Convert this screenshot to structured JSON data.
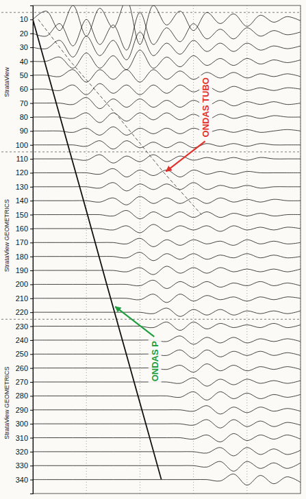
{
  "chart_data": {
    "type": "seismogram",
    "xlim": [
      0,
      100
    ],
    "xticks": [
      0,
      20,
      40,
      60,
      80,
      100
    ],
    "ylim": [
      0,
      350
    ],
    "yticks": [
      10,
      20,
      30,
      40,
      50,
      60,
      70,
      80,
      90,
      100,
      110,
      120,
      130,
      140,
      150,
      160,
      170,
      180,
      190,
      200,
      210,
      220,
      230,
      240,
      250,
      260,
      270,
      280,
      290,
      300,
      310,
      320,
      330,
      340
    ],
    "grid": true,
    "tick_labels": "y",
    "x": [
      0,
      5,
      10,
      15,
      20,
      25,
      30,
      35,
      40,
      45,
      50,
      55,
      60,
      65,
      70,
      75,
      80,
      85,
      90,
      95,
      100
    ],
    "traces": [
      {
        "depth": 10,
        "values": [
          0,
          6,
          -8,
          10,
          -12,
          8,
          -6,
          14,
          -18,
          10,
          -4,
          6,
          -8,
          5,
          -3,
          4,
          -5,
          3,
          -2,
          2,
          -1
        ]
      },
      {
        "depth": 20,
        "values": [
          0,
          -2,
          7,
          -9,
          10,
          -8,
          6,
          -12,
          15,
          -8,
          4,
          -6,
          7,
          -4,
          3,
          -4,
          4,
          -2,
          2,
          -1,
          1
        ]
      },
      {
        "depth": 30,
        "values": [
          0,
          -1,
          5,
          -7,
          8,
          -6,
          5,
          -9,
          11,
          -6,
          3,
          -5,
          5,
          -3,
          3,
          -3,
          3,
          -2,
          1,
          -1,
          1
        ]
      },
      {
        "depth": 40,
        "values": [
          0,
          0,
          3,
          -5,
          6,
          -5,
          4,
          -6,
          8,
          -5,
          3,
          -4,
          4,
          -3,
          2,
          -3,
          2,
          -2,
          1,
          -1,
          1
        ]
      },
      {
        "depth": 50,
        "values": [
          0,
          0,
          -1,
          4,
          -5,
          4,
          -3,
          4,
          -5,
          4,
          -3,
          3,
          -3,
          2,
          -2,
          2,
          -2,
          1,
          -1,
          1,
          -1
        ]
      },
      {
        "depth": 60,
        "values": [
          0,
          0,
          -1,
          3,
          -4,
          4,
          -3,
          3,
          -4,
          3,
          -3,
          3,
          -2,
          2,
          -2,
          2,
          -1,
          1,
          -1,
          1,
          0
        ]
      },
      {
        "depth": 70,
        "values": [
          0,
          0,
          0,
          -1,
          4,
          -4,
          3,
          -3,
          3,
          -3,
          2,
          -3,
          2,
          -2,
          2,
          -2,
          1,
          -1,
          1,
          -1,
          0
        ]
      },
      {
        "depth": 80,
        "values": [
          0,
          0,
          0,
          -1,
          3,
          -4,
          3,
          -3,
          3,
          -2,
          3,
          -2,
          2,
          -2,
          2,
          -1,
          1,
          -1,
          1,
          0,
          0
        ]
      },
      {
        "depth": 90,
        "values": [
          0,
          0,
          0,
          -1,
          2,
          -3,
          3,
          -3,
          2,
          -2,
          2,
          -2,
          2,
          -1,
          1,
          -1,
          1,
          -1,
          0,
          1,
          0
        ]
      },
      {
        "depth": 100,
        "values": [
          0,
          0,
          0,
          0,
          -1,
          3,
          -3,
          3,
          -2,
          2,
          -2,
          2,
          -2,
          1,
          -1,
          1,
          -1,
          1,
          0,
          0,
          0
        ]
      },
      {
        "depth": 110,
        "values": [
          0,
          0,
          0,
          0,
          -1,
          3,
          -3,
          2,
          -2,
          3,
          -2,
          2,
          -1,
          1,
          -1,
          1,
          -1,
          1,
          0,
          0,
          0
        ]
      },
      {
        "depth": 120,
        "values": [
          0,
          0,
          0,
          0,
          0,
          -1,
          3,
          -3,
          2,
          -2,
          2,
          -3,
          2,
          -1,
          1,
          -1,
          1,
          0,
          0,
          0,
          0
        ]
      },
      {
        "depth": 130,
        "values": [
          0,
          0,
          0,
          0,
          0,
          -1,
          3,
          -3,
          2,
          -2,
          2,
          -2,
          3,
          -2,
          1,
          -1,
          1,
          -1,
          0,
          0,
          0
        ]
      },
      {
        "depth": 140,
        "values": [
          0,
          0,
          0,
          0,
          0,
          -1,
          2,
          -3,
          3,
          -2,
          2,
          -2,
          2,
          -2,
          2,
          -1,
          1,
          -1,
          1,
          0,
          0
        ]
      },
      {
        "depth": 150,
        "values": [
          0,
          0,
          0,
          0,
          0,
          0,
          -1,
          3,
          -3,
          2,
          -2,
          2,
          -2,
          2,
          -2,
          1,
          -1,
          1,
          -1,
          0,
          0
        ]
      },
      {
        "depth": 160,
        "values": [
          0,
          0,
          0,
          0,
          0,
          0,
          -1,
          2,
          -3,
          3,
          -2,
          2,
          -1,
          2,
          -2,
          2,
          -1,
          1,
          -1,
          1,
          0
        ]
      },
      {
        "depth": 170,
        "values": [
          0,
          0,
          0,
          0,
          0,
          0,
          0,
          -1,
          3,
          -3,
          2,
          -2,
          2,
          -1,
          1,
          -2,
          2,
          -1,
          1,
          -1,
          0
        ]
      },
      {
        "depth": 180,
        "values": [
          0,
          0,
          0,
          0,
          0,
          0,
          0,
          -1,
          3,
          -3,
          2,
          -2,
          2,
          -2,
          1,
          -1,
          2,
          -1,
          1,
          -1,
          0
        ]
      },
      {
        "depth": 190,
        "values": [
          0,
          0,
          0,
          0,
          0,
          0,
          0,
          -1,
          2,
          -3,
          3,
          -2,
          2,
          -2,
          2,
          -1,
          1,
          -1,
          1,
          -1,
          1
        ]
      },
      {
        "depth": 200,
        "values": [
          0,
          0,
          0,
          0,
          0,
          0,
          0,
          0,
          -1,
          3,
          -3,
          2,
          -2,
          2,
          -2,
          1,
          -1,
          2,
          -1,
          1,
          -1
        ]
      },
      {
        "depth": 210,
        "values": [
          0,
          0,
          0,
          0,
          0,
          0,
          0,
          0,
          -1,
          3,
          -3,
          3,
          -2,
          2,
          -1,
          1,
          -2,
          1,
          -1,
          1,
          0
        ]
      },
      {
        "depth": 220,
        "values": [
          0,
          0,
          0,
          0,
          0,
          0,
          0,
          0,
          0,
          -1,
          3,
          -3,
          2,
          -2,
          2,
          -2,
          1,
          -1,
          1,
          -1,
          1
        ]
      },
      {
        "depth": 230,
        "values": [
          0,
          0,
          0,
          0,
          0,
          0,
          0,
          0,
          0,
          -1,
          3,
          -3,
          3,
          -2,
          2,
          -1,
          1,
          -1,
          2,
          -1,
          1
        ]
      },
      {
        "depth": 240,
        "values": [
          0,
          0,
          0,
          0,
          0,
          0,
          0,
          0,
          0,
          0,
          -1,
          3,
          -3,
          2,
          -2,
          2,
          -2,
          1,
          -1,
          1,
          -1
        ]
      },
      {
        "depth": 250,
        "values": [
          0,
          0,
          0,
          0,
          0,
          0,
          0,
          0,
          0,
          0,
          -1,
          3,
          -3,
          3,
          -2,
          2,
          -1,
          2,
          -1,
          1,
          -1
        ]
      },
      {
        "depth": 260,
        "values": [
          0,
          0,
          0,
          0,
          0,
          0,
          0,
          0,
          0,
          0,
          -1,
          2,
          -3,
          3,
          -2,
          2,
          -2,
          1,
          -1,
          1,
          -1
        ]
      },
      {
        "depth": 270,
        "values": [
          0,
          0,
          0,
          0,
          0,
          0,
          0,
          0,
          0,
          0,
          0,
          -1,
          3,
          -3,
          2,
          -2,
          2,
          -1,
          1,
          -1,
          1
        ]
      },
      {
        "depth": 280,
        "values": [
          0,
          0,
          0,
          0,
          0,
          0,
          0,
          0,
          0,
          0,
          0,
          -1,
          3,
          -3,
          3,
          -2,
          2,
          -2,
          1,
          -1,
          1
        ]
      },
      {
        "depth": 290,
        "values": [
          0,
          0,
          0,
          0,
          0,
          0,
          0,
          0,
          0,
          0,
          0,
          0,
          -1,
          3,
          -3,
          2,
          -2,
          2,
          -1,
          1,
          -1
        ]
      },
      {
        "depth": 300,
        "values": [
          0,
          0,
          0,
          0,
          0,
          0,
          0,
          0,
          0,
          0,
          0,
          0,
          -1,
          3,
          -3,
          3,
          -2,
          2,
          -2,
          1,
          -1
        ]
      },
      {
        "depth": 310,
        "values": [
          0,
          0,
          0,
          0,
          0,
          0,
          0,
          0,
          0,
          0,
          0,
          0,
          -1,
          2,
          -3,
          3,
          -2,
          2,
          -1,
          2,
          -1
        ]
      },
      {
        "depth": 320,
        "values": [
          0,
          0,
          0,
          0,
          0,
          0,
          0,
          0,
          0,
          0,
          0,
          0,
          0,
          -1,
          3,
          -3,
          3,
          -2,
          2,
          -2,
          1
        ]
      },
      {
        "depth": 330,
        "values": [
          0,
          0,
          0,
          0,
          0,
          0,
          0,
          0,
          0,
          0,
          0,
          0,
          0,
          -1,
          3,
          -4,
          3,
          -2,
          2,
          -2,
          2
        ]
      },
      {
        "depth": 340,
        "values": [
          0,
          0,
          0,
          0,
          0,
          0,
          0,
          0,
          0,
          0,
          0,
          0,
          0,
          0,
          -1,
          4,
          -4,
          3,
          -3,
          2,
          -2
        ]
      }
    ],
    "picks": [
      {
        "x": [
          0,
          5.8,
          13.1,
          20.4,
          27.6,
          34.9,
          42.2,
          48
        ],
        "y": [
          10,
          50,
          100,
          150,
          200,
          250,
          300,
          340
        ],
        "color": "#111111",
        "line_style": "solid"
      },
      {
        "x": [
          2,
          14,
          32,
          49,
          63
        ],
        "y": [
          10,
          40,
          80,
          120,
          150
        ],
        "color": "#555555",
        "line_style": "dashed"
      }
    ],
    "annotations": [
      {
        "text": "ONDAS TUBO",
        "color": "#e0312b",
        "x": 49,
        "y": 120
      },
      {
        "text": "ONDAS P",
        "color": "#1e9e3e",
        "x": 30,
        "y": 215
      }
    ],
    "records": [
      {
        "label": "StrataView",
        "first": 10,
        "last": 100
      },
      {
        "label": "StrataView GEOMETRICS",
        "first": 110,
        "last": 220
      },
      {
        "label": "StrataView GEOMETRICS",
        "first": 230,
        "last": 340
      }
    ]
  }
}
